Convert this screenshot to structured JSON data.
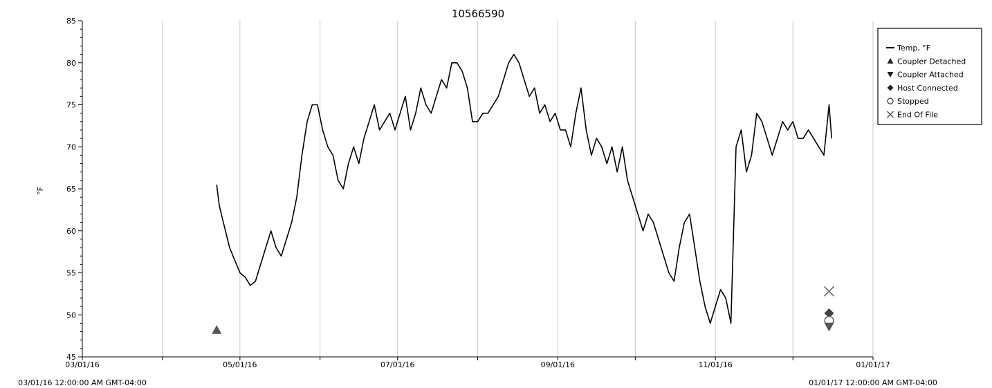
{
  "chart_data": {
    "type": "line",
    "title": "10566590",
    "ylabel": "°F",
    "xlabel": "",
    "ylim": [
      45,
      85
    ],
    "yticks": [
      45,
      50,
      55,
      60,
      65,
      70,
      75,
      80,
      85
    ],
    "xlim": [
      "2016-03-01",
      "2017-01-01"
    ],
    "xtick_labels": [
      {
        "date": "2016-03-01",
        "label": "03/01/16"
      },
      {
        "date": "2016-05-01",
        "label": "05/01/16"
      },
      {
        "date": "2016-07-01",
        "label": "07/01/16"
      },
      {
        "date": "2016-09-01",
        "label": "09/01/16"
      },
      {
        "date": "2016-11-01",
        "label": "11/01/16"
      },
      {
        "date": "2017-01-01",
        "label": "01/01/17"
      }
    ],
    "xgrid": [
      "2016-04-01",
      "2016-05-01",
      "2016-06-01",
      "2016-07-01",
      "2016-08-01",
      "2016-09-01",
      "2016-10-01",
      "2016-11-01",
      "2016-12-01",
      "2017-01-01"
    ],
    "x_start_label": "03/01/16 12:00:00 AM GMT-04:00",
    "x_end_label": "01/01/17 12:00:00 AM GMT-04:00",
    "grid": "vertical",
    "legend": {
      "position": "right",
      "entries": [
        {
          "label": "Temp, °F",
          "marker": "line"
        },
        {
          "label": "Coupler Detached",
          "marker": "triangle-up"
        },
        {
          "label": "Coupler Attached",
          "marker": "triangle-down"
        },
        {
          "label": "Host Connected",
          "marker": "diamond"
        },
        {
          "label": "Stopped",
          "marker": "circle-open"
        },
        {
          "label": "End Of File",
          "marker": "x"
        }
      ]
    },
    "series": [
      {
        "name": "Temp, °F",
        "color": "#000000",
        "points": [
          [
            "2016-04-22",
            65.5
          ],
          [
            "2016-04-23",
            63
          ],
          [
            "2016-04-25",
            60.5
          ],
          [
            "2016-04-27",
            58
          ],
          [
            "2016-04-29",
            56.5
          ],
          [
            "2016-05-01",
            55
          ],
          [
            "2016-05-03",
            54.5
          ],
          [
            "2016-05-05",
            53.5
          ],
          [
            "2016-05-07",
            54
          ],
          [
            "2016-05-09",
            56
          ],
          [
            "2016-05-11",
            58
          ],
          [
            "2016-05-13",
            60
          ],
          [
            "2016-05-15",
            58
          ],
          [
            "2016-05-17",
            57
          ],
          [
            "2016-05-19",
            59
          ],
          [
            "2016-05-21",
            61
          ],
          [
            "2016-05-23",
            64
          ],
          [
            "2016-05-25",
            69
          ],
          [
            "2016-05-27",
            73
          ],
          [
            "2016-05-29",
            75
          ],
          [
            "2016-05-31",
            75
          ],
          [
            "2016-06-02",
            72
          ],
          [
            "2016-06-04",
            70
          ],
          [
            "2016-06-06",
            69
          ],
          [
            "2016-06-08",
            66
          ],
          [
            "2016-06-10",
            65
          ],
          [
            "2016-06-12",
            68
          ],
          [
            "2016-06-14",
            70
          ],
          [
            "2016-06-16",
            68
          ],
          [
            "2016-06-18",
            71
          ],
          [
            "2016-06-20",
            73
          ],
          [
            "2016-06-22",
            75
          ],
          [
            "2016-06-24",
            72
          ],
          [
            "2016-06-26",
            73
          ],
          [
            "2016-06-28",
            74
          ],
          [
            "2016-06-30",
            72
          ],
          [
            "2016-07-02",
            74
          ],
          [
            "2016-07-04",
            76
          ],
          [
            "2016-07-06",
            72
          ],
          [
            "2016-07-08",
            74
          ],
          [
            "2016-07-10",
            77
          ],
          [
            "2016-07-12",
            75
          ],
          [
            "2016-07-14",
            74
          ],
          [
            "2016-07-16",
            76
          ],
          [
            "2016-07-18",
            78
          ],
          [
            "2016-07-20",
            77
          ],
          [
            "2016-07-22",
            80
          ],
          [
            "2016-07-24",
            80
          ],
          [
            "2016-07-26",
            79
          ],
          [
            "2016-07-28",
            77
          ],
          [
            "2016-07-30",
            73
          ],
          [
            "2016-08-01",
            73
          ],
          [
            "2016-08-03",
            74
          ],
          [
            "2016-08-05",
            74
          ],
          [
            "2016-08-07",
            75
          ],
          [
            "2016-08-09",
            76
          ],
          [
            "2016-08-11",
            78
          ],
          [
            "2016-08-13",
            80
          ],
          [
            "2016-08-15",
            81
          ],
          [
            "2016-08-17",
            80
          ],
          [
            "2016-08-19",
            78
          ],
          [
            "2016-08-21",
            76
          ],
          [
            "2016-08-23",
            77
          ],
          [
            "2016-08-25",
            74
          ],
          [
            "2016-08-27",
            75
          ],
          [
            "2016-08-29",
            73
          ],
          [
            "2016-08-31",
            74
          ],
          [
            "2016-09-02",
            72
          ],
          [
            "2016-09-04",
            72
          ],
          [
            "2016-09-06",
            70
          ],
          [
            "2016-09-08",
            74
          ],
          [
            "2016-09-10",
            77
          ],
          [
            "2016-09-12",
            72
          ],
          [
            "2016-09-14",
            69
          ],
          [
            "2016-09-16",
            71
          ],
          [
            "2016-09-18",
            70
          ],
          [
            "2016-09-20",
            68
          ],
          [
            "2016-09-22",
            70
          ],
          [
            "2016-09-24",
            67
          ],
          [
            "2016-09-26",
            70
          ],
          [
            "2016-09-28",
            66
          ],
          [
            "2016-09-30",
            64
          ],
          [
            "2016-10-02",
            62
          ],
          [
            "2016-10-04",
            60
          ],
          [
            "2016-10-06",
            62
          ],
          [
            "2016-10-08",
            61
          ],
          [
            "2016-10-10",
            59
          ],
          [
            "2016-10-12",
            57
          ],
          [
            "2016-10-14",
            55
          ],
          [
            "2016-10-16",
            54
          ],
          [
            "2016-10-18",
            58
          ],
          [
            "2016-10-20",
            61
          ],
          [
            "2016-10-22",
            62
          ],
          [
            "2016-10-24",
            58
          ],
          [
            "2016-10-26",
            54
          ],
          [
            "2016-10-28",
            51
          ],
          [
            "2016-10-30",
            49
          ],
          [
            "2016-11-01",
            51
          ],
          [
            "2016-11-03",
            53
          ],
          [
            "2016-11-05",
            52
          ],
          [
            "2016-11-07",
            49
          ],
          [
            "2016-11-09",
            70
          ],
          [
            "2016-11-11",
            72
          ],
          [
            "2016-11-13",
            67
          ],
          [
            "2016-11-15",
            69
          ],
          [
            "2016-11-17",
            74
          ],
          [
            "2016-11-19",
            73
          ],
          [
            "2016-11-21",
            71
          ],
          [
            "2016-11-23",
            69
          ],
          [
            "2016-11-25",
            71
          ],
          [
            "2016-11-27",
            73
          ],
          [
            "2016-11-29",
            72
          ],
          [
            "2016-12-01",
            73
          ],
          [
            "2016-12-03",
            71
          ],
          [
            "2016-12-05",
            71
          ],
          [
            "2016-12-07",
            72
          ],
          [
            "2016-12-09",
            71
          ],
          [
            "2016-12-11",
            70
          ],
          [
            "2016-12-13",
            69
          ],
          [
            "2016-12-15",
            75
          ],
          [
            "2016-12-16",
            71
          ]
        ]
      }
    ],
    "events": [
      {
        "name": "Coupler Detached",
        "marker": "triangle-up",
        "date": "2016-04-22",
        "y": 48.2,
        "color": "#555555"
      },
      {
        "name": "End Of File",
        "marker": "x",
        "date": "2016-12-15",
        "y": 52.8,
        "color": "#555555"
      },
      {
        "name": "Host Connected",
        "marker": "diamond",
        "date": "2016-12-15",
        "y": 50.2,
        "color": "#444444"
      },
      {
        "name": "Stopped",
        "marker": "circle-open",
        "date": "2016-12-15",
        "y": 49.3,
        "color": "#555555"
      },
      {
        "name": "Coupler Attached",
        "marker": "triangle-down",
        "date": "2016-12-15",
        "y": 48.6,
        "color": "#555555"
      }
    ],
    "colors": {
      "grid": "#c8c8c8",
      "axis": "#000000",
      "marker": "#555555"
    }
  }
}
